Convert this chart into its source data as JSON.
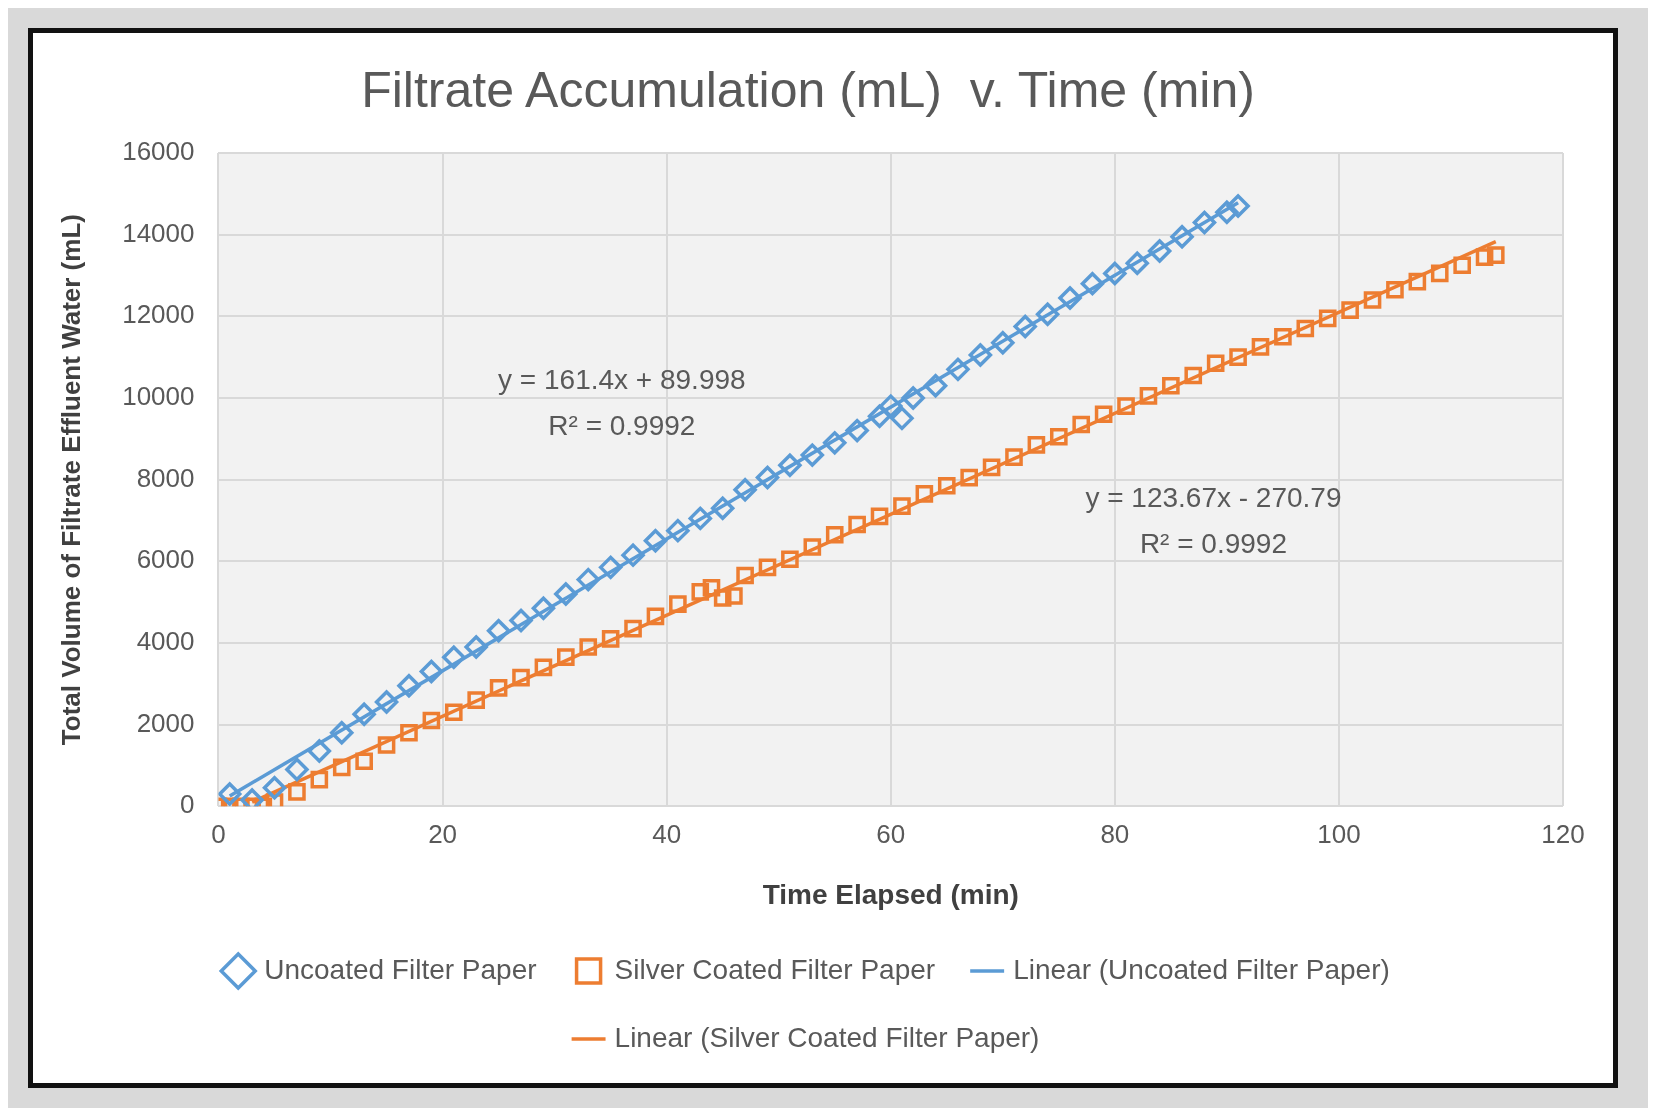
{
  "chart_data": {
    "type": "scatter",
    "title": "Filtrate Accumulation (mL)  v. Time (min)",
    "xlabel": "Time Elapsed (min)",
    "ylabel": "Total Volume of Filtrate Effluent Water (mL)",
    "xlim": [
      0,
      120
    ],
    "xticks": [
      0,
      20,
      40,
      60,
      80,
      100,
      120
    ],
    "ylim": [
      0,
      16000
    ],
    "yticks": [
      0,
      2000,
      4000,
      6000,
      8000,
      10000,
      12000,
      14000,
      16000
    ],
    "grid": true,
    "legend": "bottom",
    "series": [
      {
        "name": "Uncoated Filter Paper",
        "marker": "diamond",
        "color": "#5b9bd5",
        "x": [
          1,
          3,
          5,
          7,
          9,
          11,
          13,
          15,
          17,
          19,
          21,
          23,
          25,
          27,
          29,
          31,
          33,
          35,
          37,
          39,
          41,
          43,
          45,
          47,
          49,
          51,
          53,
          55,
          57,
          59,
          60,
          61,
          62,
          64,
          66,
          68,
          70,
          72,
          74,
          76,
          78,
          80,
          82,
          84,
          86,
          88,
          90,
          91
        ],
        "values": [
          300,
          150,
          450,
          900,
          1350,
          1800,
          2250,
          2550,
          2950,
          3300,
          3650,
          3900,
          4300,
          4550,
          4850,
          5200,
          5550,
          5850,
          6150,
          6500,
          6750,
          7050,
          7300,
          7750,
          8050,
          8350,
          8600,
          8900,
          9200,
          9550,
          9800,
          9500,
          10000,
          10300,
          10700,
          11050,
          11350,
          11750,
          12050,
          12450,
          12800,
          13050,
          13300,
          13600,
          13950,
          14300,
          14550,
          14700
        ]
      },
      {
        "name": "Silver Coated Filter Paper",
        "marker": "square",
        "color": "#ed7d31",
        "x": [
          0,
          1,
          2,
          3,
          4,
          5,
          7,
          9,
          11,
          13,
          15,
          17,
          19,
          21,
          23,
          25,
          27,
          29,
          31,
          33,
          35,
          37,
          39,
          41,
          43,
          44,
          45,
          46,
          47,
          49,
          51,
          53,
          55,
          57,
          59,
          61,
          63,
          65,
          67,
          69,
          71,
          73,
          75,
          77,
          79,
          81,
          83,
          85,
          87,
          89,
          91,
          93,
          95,
          97,
          99,
          101,
          103,
          105,
          107,
          109,
          111,
          113,
          114
        ],
        "values": [
          0,
          0,
          0,
          0,
          0,
          100,
          350,
          650,
          950,
          1100,
          1500,
          1800,
          2100,
          2300,
          2600,
          2900,
          3150,
          3400,
          3650,
          3900,
          4100,
          4350,
          4650,
          4950,
          5250,
          5350,
          5100,
          5150,
          5650,
          5850,
          6050,
          6350,
          6650,
          6900,
          7100,
          7350,
          7650,
          7850,
          8050,
          8300,
          8550,
          8850,
          9050,
          9350,
          9600,
          9800,
          10050,
          10300,
          10550,
          10850,
          11000,
          11250,
          11500,
          11700,
          11950,
          12150,
          12400,
          12650,
          12850,
          13050,
          13250,
          13450,
          13500
        ]
      },
      {
        "name": "Linear (Uncoated Filter Paper)",
        "type": "line",
        "marker": "none",
        "color": "#5b9bd5",
        "x": [
          1,
          91
        ],
        "values": [
          250,
          14780
        ]
      },
      {
        "name": "Linear (Silver Coated Filter Paper)",
        "type": "line",
        "marker": "none",
        "color": "#ed7d31",
        "x": [
          3,
          114
        ],
        "values": [
          100,
          13830
        ]
      }
    ],
    "annotations": [
      "y = 161.4x + 89.998",
      "R² = 0.9992",
      "y = 123.67x - 270.79",
      "R² = 0.9992"
    ]
  }
}
